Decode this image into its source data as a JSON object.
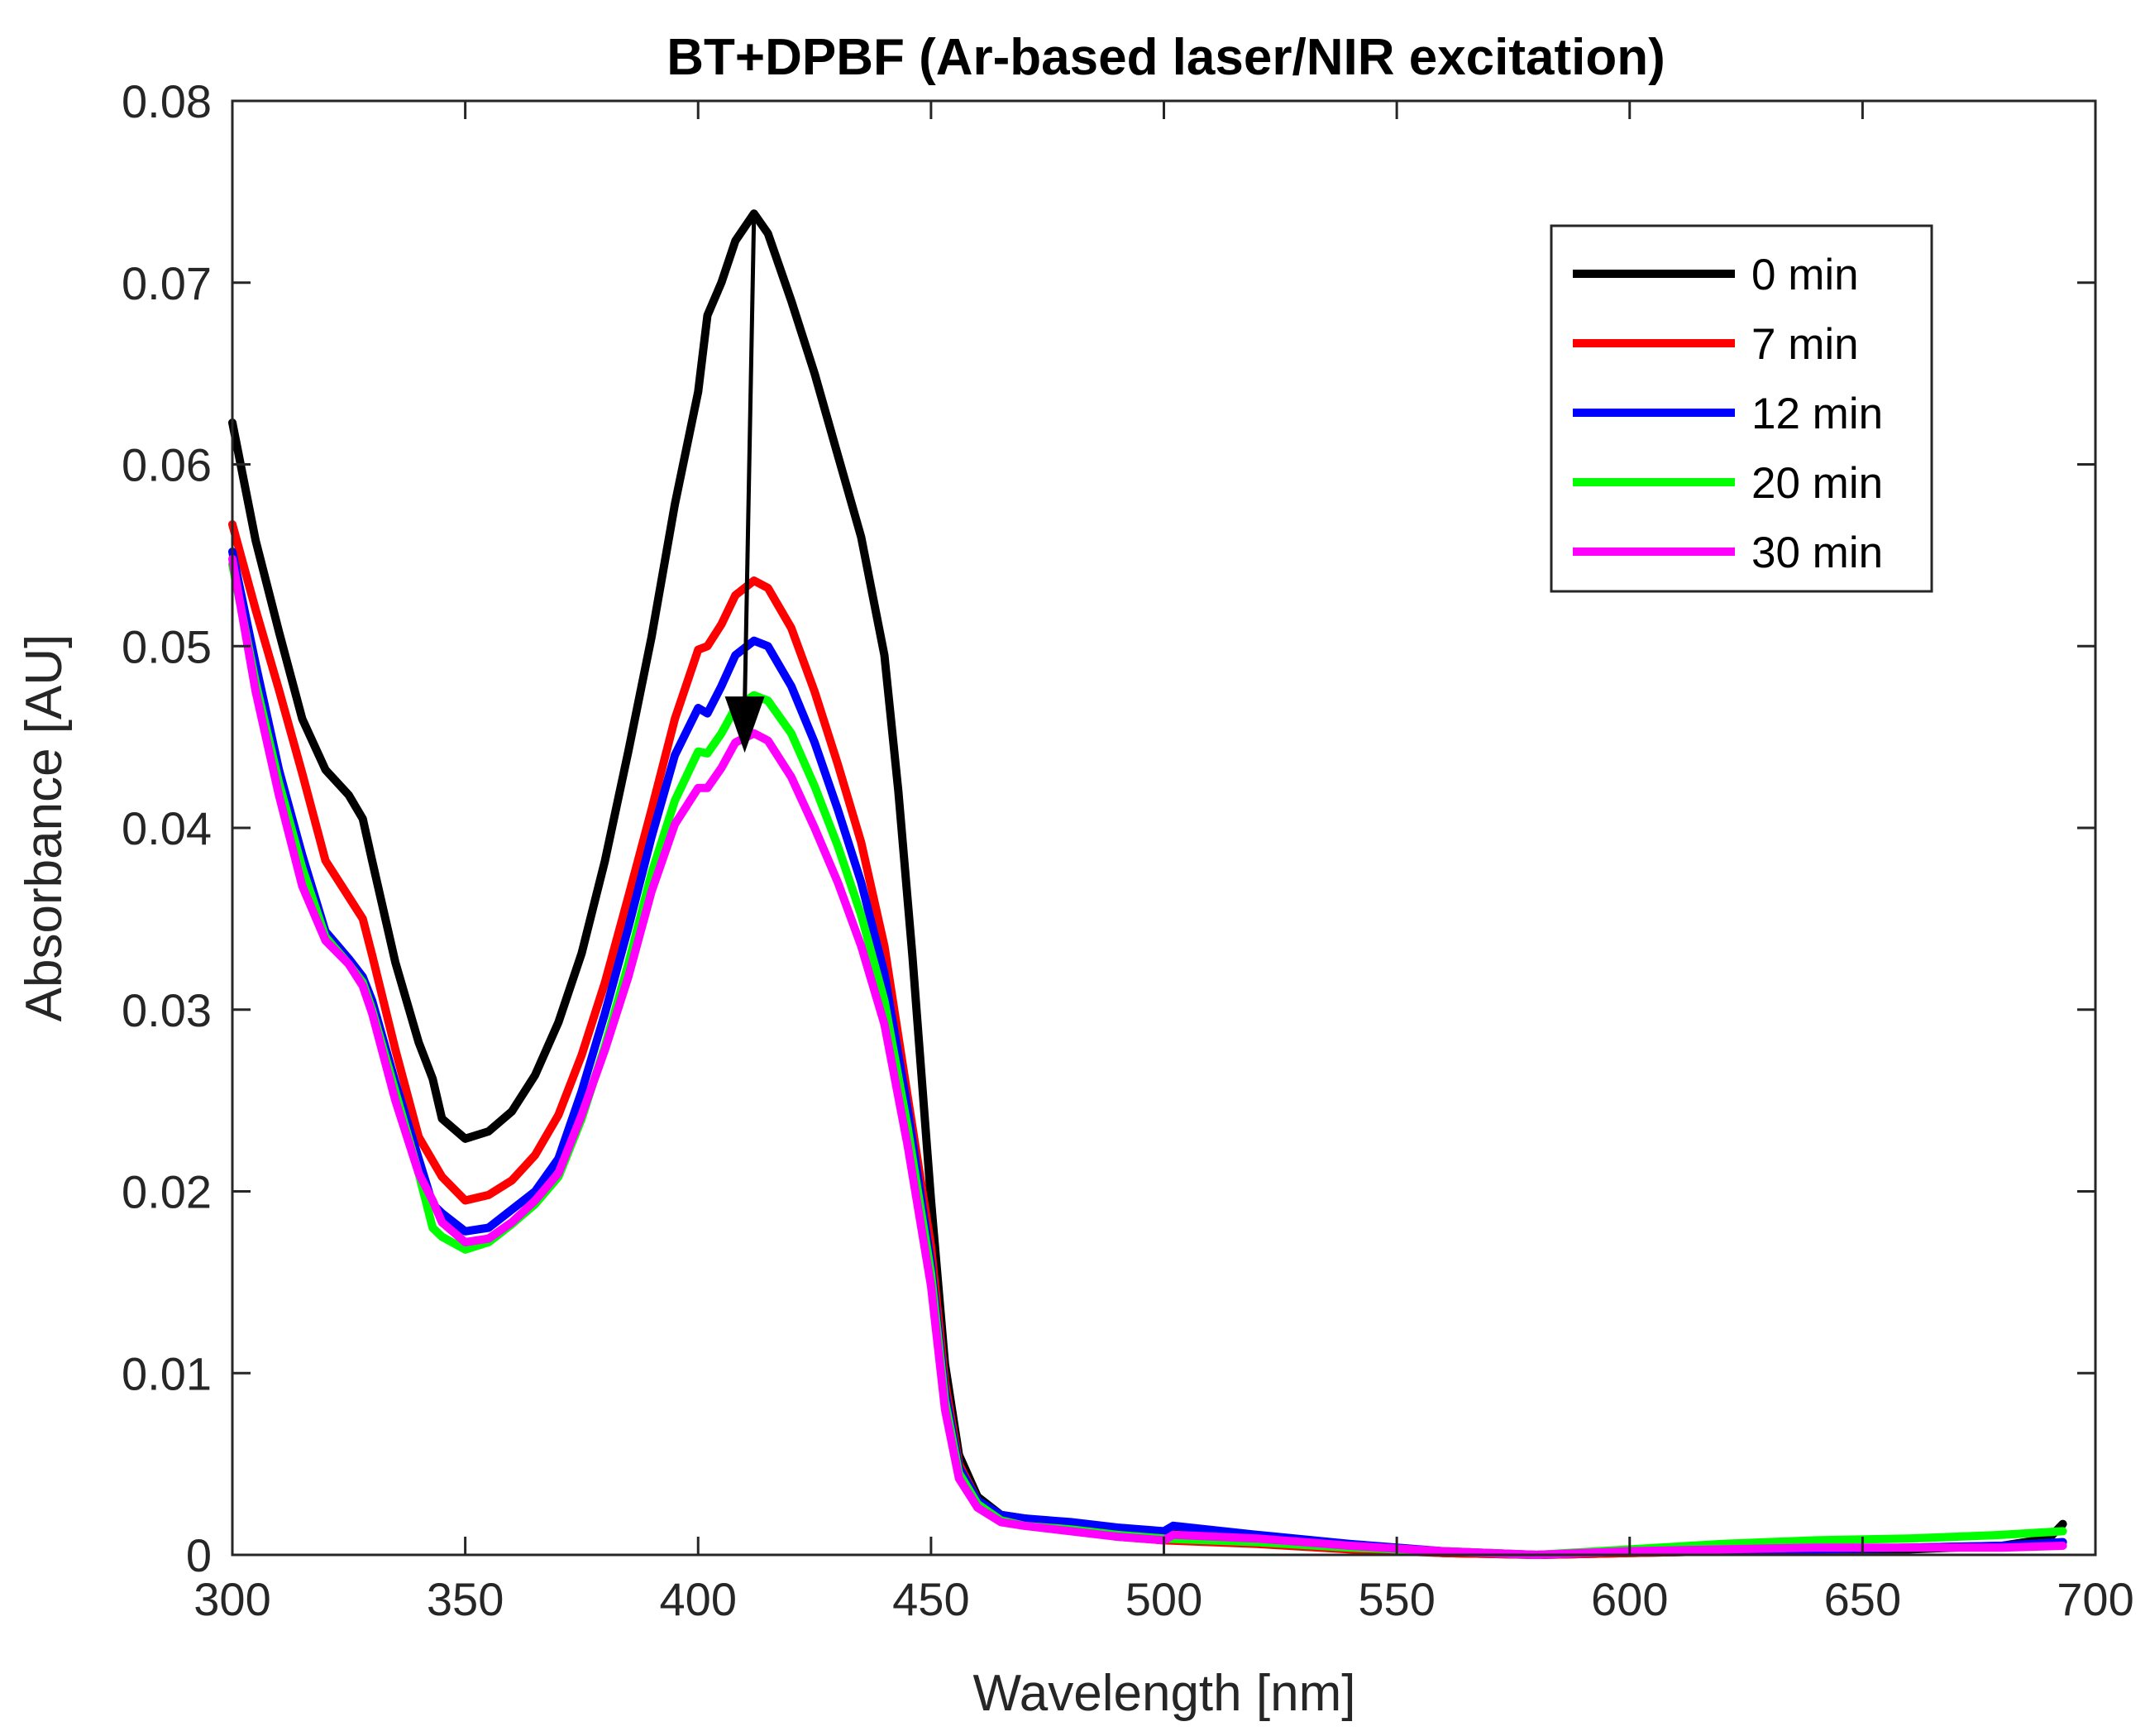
{
  "chart_data": {
    "type": "line",
    "title": "BT+DPBF (Ar-based laser/NIR excitation)",
    "xlabel": "Wavelength [nm]",
    "ylabel": "Absorbance [AU]",
    "xlim": [
      300,
      700
    ],
    "ylim": [
      0,
      0.08
    ],
    "xticks": [
      300,
      350,
      400,
      450,
      500,
      550,
      600,
      650,
      700
    ],
    "yticks": [
      0,
      0.01,
      0.02,
      0.03,
      0.04,
      0.05,
      0.06,
      0.07,
      0.08
    ],
    "xtick_labels": [
      "300",
      "350",
      "400",
      "450",
      "500",
      "550",
      "600",
      "650",
      "700"
    ],
    "ytick_labels": [
      "0",
      "0.01",
      "0.02",
      "0.03",
      "0.04",
      "0.05",
      "0.06",
      "0.07",
      "0.08"
    ],
    "grid": false,
    "legend_position": "top-right",
    "annotation": {
      "type": "arrow",
      "from": [
        412,
        0.0738
      ],
      "to": [
        410,
        0.0445
      ]
    },
    "series": [
      {
        "name": "0 min",
        "color": "#000000",
        "points": [
          [
            300,
            0.0623
          ],
          [
            305,
            0.0558
          ],
          [
            310,
            0.0508
          ],
          [
            315,
            0.046
          ],
          [
            320,
            0.0432
          ],
          [
            325,
            0.0418
          ],
          [
            328,
            0.0405
          ],
          [
            330,
            0.0382
          ],
          [
            335,
            0.0326
          ],
          [
            340,
            0.0282
          ],
          [
            343,
            0.0262
          ],
          [
            345,
            0.024
          ],
          [
            350,
            0.0229
          ],
          [
            355,
            0.0233
          ],
          [
            360,
            0.0244
          ],
          [
            365,
            0.0264
          ],
          [
            370,
            0.0293
          ],
          [
            375,
            0.0331
          ],
          [
            380,
            0.0382
          ],
          [
            385,
            0.0442
          ],
          [
            390,
            0.0505
          ],
          [
            395,
            0.0578
          ],
          [
            400,
            0.064
          ],
          [
            402,
            0.0682
          ],
          [
            405,
            0.07
          ],
          [
            408,
            0.0723
          ],
          [
            412,
            0.0738
          ],
          [
            415,
            0.0727
          ],
          [
            420,
            0.069
          ],
          [
            425,
            0.065
          ],
          [
            430,
            0.0605
          ],
          [
            435,
            0.056
          ],
          [
            440,
            0.0495
          ],
          [
            443,
            0.042
          ],
          [
            446,
            0.033
          ],
          [
            450,
            0.0195
          ],
          [
            453,
            0.0105
          ],
          [
            456,
            0.0055
          ],
          [
            460,
            0.0032
          ],
          [
            465,
            0.0022
          ],
          [
            470,
            0.002
          ],
          [
            480,
            0.0017
          ],
          [
            490,
            0.0014
          ],
          [
            500,
            0.0011
          ],
          [
            502,
            0.0013
          ],
          [
            520,
            0.0008
          ],
          [
            540,
            0.0004
          ],
          [
            560,
            0.0001
          ],
          [
            580,
            0.0
          ],
          [
            600,
            0.0001
          ],
          [
            620,
            0.0002
          ],
          [
            640,
            0.0003
          ],
          [
            660,
            0.0003
          ],
          [
            680,
            0.0005
          ],
          [
            690,
            0.0009
          ],
          [
            693,
            0.0017
          ]
        ]
      },
      {
        "name": "7 min",
        "color": "#ff0000",
        "points": [
          [
            300,
            0.0567
          ],
          [
            305,
            0.052
          ],
          [
            310,
            0.0476
          ],
          [
            315,
            0.043
          ],
          [
            320,
            0.0382
          ],
          [
            325,
            0.0362
          ],
          [
            328,
            0.035
          ],
          [
            330,
            0.033
          ],
          [
            335,
            0.0278
          ],
          [
            340,
            0.023
          ],
          [
            345,
            0.0208
          ],
          [
            350,
            0.0195
          ],
          [
            355,
            0.0198
          ],
          [
            360,
            0.0206
          ],
          [
            365,
            0.022
          ],
          [
            370,
            0.0242
          ],
          [
            375,
            0.0275
          ],
          [
            380,
            0.0315
          ],
          [
            385,
            0.0362
          ],
          [
            390,
            0.041
          ],
          [
            395,
            0.046
          ],
          [
            400,
            0.0498
          ],
          [
            402,
            0.05
          ],
          [
            405,
            0.0512
          ],
          [
            408,
            0.0528
          ],
          [
            412,
            0.0536
          ],
          [
            415,
            0.0532
          ],
          [
            420,
            0.051
          ],
          [
            425,
            0.0475
          ],
          [
            430,
            0.0435
          ],
          [
            435,
            0.0392
          ],
          [
            440,
            0.0335
          ],
          [
            445,
            0.0252
          ],
          [
            450,
            0.017
          ],
          [
            453,
            0.0095
          ],
          [
            456,
            0.005
          ],
          [
            460,
            0.003
          ],
          [
            465,
            0.002
          ],
          [
            470,
            0.0017
          ],
          [
            480,
            0.0014
          ],
          [
            490,
            0.001
          ],
          [
            500,
            0.0008
          ],
          [
            520,
            0.0006
          ],
          [
            540,
            0.0003
          ],
          [
            560,
            0.0001
          ],
          [
            580,
            0.0
          ],
          [
            600,
            0.0001
          ],
          [
            620,
            0.0002
          ],
          [
            640,
            0.0003
          ],
          [
            660,
            0.0004
          ],
          [
            680,
            0.0005
          ],
          [
            693,
            0.0007
          ]
        ]
      },
      {
        "name": "12 min",
        "color": "#0000ff",
        "points": [
          [
            300,
            0.0552
          ],
          [
            305,
            0.049
          ],
          [
            310,
            0.0432
          ],
          [
            315,
            0.0385
          ],
          [
            320,
            0.0343
          ],
          [
            325,
            0.0328
          ],
          [
            328,
            0.0318
          ],
          [
            330,
            0.0305
          ],
          [
            335,
            0.026
          ],
          [
            340,
            0.0218
          ],
          [
            343,
            0.0193
          ],
          [
            345,
            0.0188
          ],
          [
            350,
            0.0178
          ],
          [
            355,
            0.018
          ],
          [
            360,
            0.019
          ],
          [
            365,
            0.02
          ],
          [
            370,
            0.0218
          ],
          [
            375,
            0.0255
          ],
          [
            380,
            0.0298
          ],
          [
            385,
            0.0345
          ],
          [
            390,
            0.0395
          ],
          [
            395,
            0.044
          ],
          [
            400,
            0.0466
          ],
          [
            402,
            0.0463
          ],
          [
            405,
            0.0478
          ],
          [
            408,
            0.0495
          ],
          [
            412,
            0.0503
          ],
          [
            415,
            0.05
          ],
          [
            420,
            0.0478
          ],
          [
            425,
            0.0447
          ],
          [
            430,
            0.041
          ],
          [
            435,
            0.037
          ],
          [
            440,
            0.032
          ],
          [
            445,
            0.0245
          ],
          [
            450,
            0.016
          ],
          [
            453,
            0.009
          ],
          [
            456,
            0.0048
          ],
          [
            460,
            0.003
          ],
          [
            465,
            0.0022
          ],
          [
            470,
            0.002
          ],
          [
            480,
            0.0018
          ],
          [
            490,
            0.0015
          ],
          [
            500,
            0.0013
          ],
          [
            502,
            0.0016
          ],
          [
            520,
            0.0011
          ],
          [
            540,
            0.0006
          ],
          [
            560,
            0.0002
          ],
          [
            580,
            0.0
          ],
          [
            600,
            0.0002
          ],
          [
            620,
            0.0003
          ],
          [
            640,
            0.0003
          ],
          [
            660,
            0.0004
          ],
          [
            680,
            0.0005
          ],
          [
            693,
            0.0007
          ]
        ]
      },
      {
        "name": "20 min",
        "color": "#00ff00",
        "points": [
          [
            300,
            0.0545
          ],
          [
            305,
            0.048
          ],
          [
            310,
            0.0425
          ],
          [
            315,
            0.0378
          ],
          [
            320,
            0.034
          ],
          [
            325,
            0.0325
          ],
          [
            328,
            0.0315
          ],
          [
            330,
            0.03
          ],
          [
            335,
            0.0255
          ],
          [
            340,
            0.021
          ],
          [
            343,
            0.018
          ],
          [
            345,
            0.0175
          ],
          [
            350,
            0.0168
          ],
          [
            355,
            0.0172
          ],
          [
            360,
            0.0182
          ],
          [
            365,
            0.0193
          ],
          [
            370,
            0.0208
          ],
          [
            375,
            0.024
          ],
          [
            380,
            0.028
          ],
          [
            385,
            0.0325
          ],
          [
            390,
            0.0375
          ],
          [
            395,
            0.0415
          ],
          [
            400,
            0.0442
          ],
          [
            402,
            0.0441
          ],
          [
            405,
            0.0452
          ],
          [
            408,
            0.0466
          ],
          [
            412,
            0.0473
          ],
          [
            415,
            0.047
          ],
          [
            420,
            0.0452
          ],
          [
            425,
            0.0423
          ],
          [
            430,
            0.039
          ],
          [
            435,
            0.0352
          ],
          [
            440,
            0.0305
          ],
          [
            445,
            0.0235
          ],
          [
            450,
            0.0155
          ],
          [
            453,
            0.0085
          ],
          [
            456,
            0.0045
          ],
          [
            460,
            0.0028
          ],
          [
            465,
            0.0019
          ],
          [
            470,
            0.0016
          ],
          [
            480,
            0.0014
          ],
          [
            490,
            0.0011
          ],
          [
            500,
            0.0009
          ],
          [
            520,
            0.0007
          ],
          [
            540,
            0.0004
          ],
          [
            560,
            0.0002
          ],
          [
            580,
            0.0
          ],
          [
            600,
            0.0003
          ],
          [
            620,
            0.0006
          ],
          [
            640,
            0.0008
          ],
          [
            660,
            0.0009
          ],
          [
            680,
            0.0011
          ],
          [
            693,
            0.0013
          ]
        ]
      },
      {
        "name": "30 min",
        "color": "#ff00ff",
        "points": [
          [
            300,
            0.0548
          ],
          [
            305,
            0.0475
          ],
          [
            310,
            0.0418
          ],
          [
            315,
            0.0368
          ],
          [
            320,
            0.0338
          ],
          [
            325,
            0.0325
          ],
          [
            328,
            0.0313
          ],
          [
            330,
            0.0298
          ],
          [
            335,
            0.025
          ],
          [
            340,
            0.021
          ],
          [
            343,
            0.0195
          ],
          [
            345,
            0.0183
          ],
          [
            350,
            0.0172
          ],
          [
            355,
            0.0174
          ],
          [
            360,
            0.0183
          ],
          [
            365,
            0.0195
          ],
          [
            370,
            0.021
          ],
          [
            375,
            0.0242
          ],
          [
            380,
            0.0278
          ],
          [
            385,
            0.0318
          ],
          [
            390,
            0.0365
          ],
          [
            395,
            0.0402
          ],
          [
            400,
            0.0422
          ],
          [
            402,
            0.0422
          ],
          [
            405,
            0.0433
          ],
          [
            408,
            0.0447
          ],
          [
            412,
            0.0452
          ],
          [
            415,
            0.0448
          ],
          [
            420,
            0.0428
          ],
          [
            425,
            0.04
          ],
          [
            430,
            0.037
          ],
          [
            435,
            0.0335
          ],
          [
            440,
            0.0292
          ],
          [
            445,
            0.0225
          ],
          [
            450,
            0.0148
          ],
          [
            453,
            0.008
          ],
          [
            456,
            0.0042
          ],
          [
            460,
            0.0026
          ],
          [
            465,
            0.0018
          ],
          [
            470,
            0.0016
          ],
          [
            480,
            0.0013
          ],
          [
            490,
            0.001
          ],
          [
            500,
            0.0008
          ],
          [
            502,
            0.0011
          ],
          [
            520,
            0.0009
          ],
          [
            540,
            0.0005
          ],
          [
            560,
            0.0002
          ],
          [
            580,
            0.0
          ],
          [
            600,
            0.0002
          ],
          [
            620,
            0.0003
          ],
          [
            640,
            0.0004
          ],
          [
            660,
            0.0004
          ],
          [
            680,
            0.0004
          ],
          [
            693,
            0.0005
          ]
        ]
      }
    ]
  }
}
